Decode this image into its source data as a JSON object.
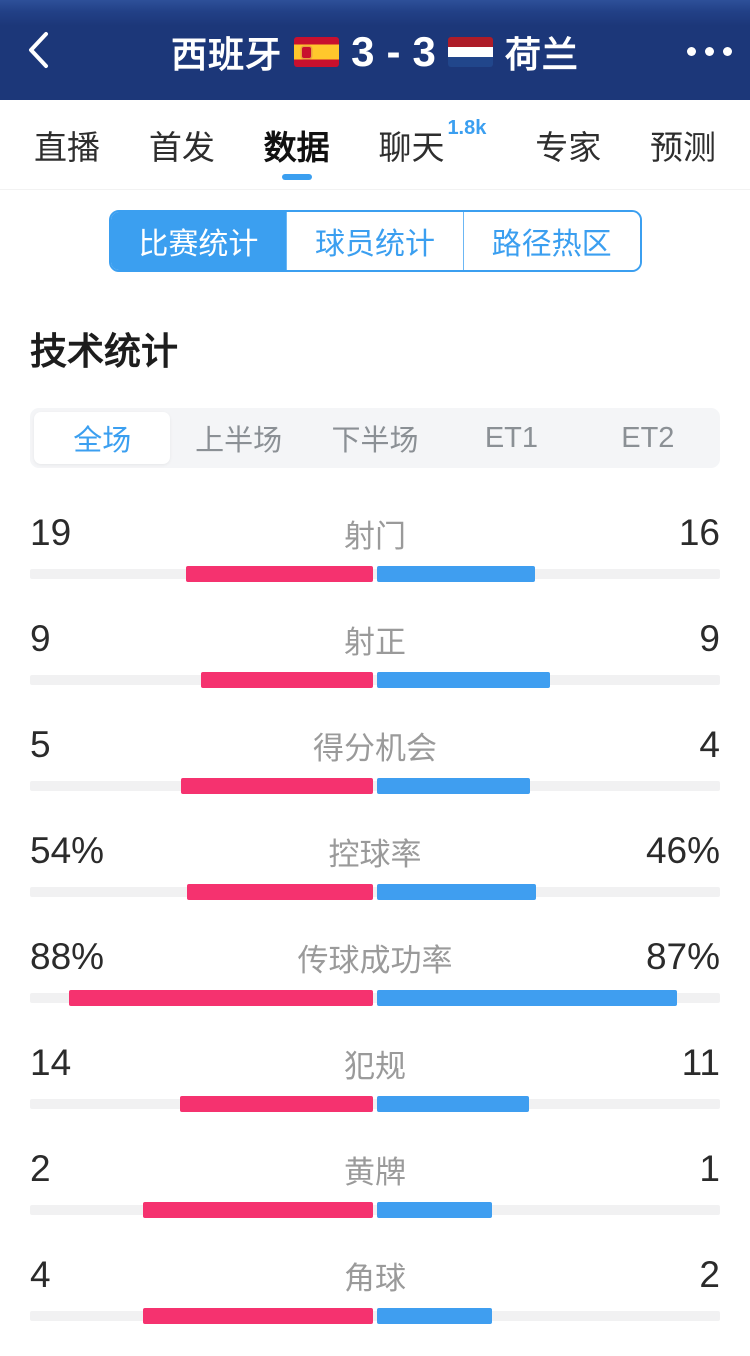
{
  "header": {
    "home_team": "西班牙",
    "away_team": "荷兰",
    "home_score": "3",
    "score_separator": "-",
    "away_score": "3",
    "back_icon": "chevron-left",
    "more_icon": "ellipsis"
  },
  "nav_tabs": {
    "items": [
      {
        "label": "直播",
        "active": false
      },
      {
        "label": "首发",
        "active": false
      },
      {
        "label": "数据",
        "active": true
      },
      {
        "label": "聊天",
        "active": false,
        "badge": "1.8k"
      },
      {
        "label": "专家",
        "active": false
      },
      {
        "label": "预测",
        "active": false
      }
    ]
  },
  "stat_tabs": {
    "items": [
      {
        "label": "比赛统计",
        "active": true
      },
      {
        "label": "球员统计",
        "active": false
      },
      {
        "label": "路径热区",
        "active": false
      }
    ]
  },
  "main": {
    "section_title": "技术统计"
  },
  "period_tabs": {
    "items": [
      {
        "label": "全场",
        "active": true
      },
      {
        "label": "上半场",
        "active": false
      },
      {
        "label": "下半场",
        "active": false
      },
      {
        "label": "ET1",
        "active": false
      },
      {
        "label": "ET2",
        "active": false
      }
    ]
  },
  "colors": {
    "accent_blue": "#3b9ff0",
    "home_pink": "#f5326f",
    "away_blue": "#3f9ef0",
    "header_navy": "#1c3779",
    "track_gray": "#f1f1f2"
  },
  "chart_data": {
    "type": "bar",
    "title": "技术统计 全场",
    "description": "Paired horizontal stat bars from center: home (left, pink) vs away (right, blue); bar length share = value share (counts) or percentage of half-track (percent rows)",
    "home_team": "西班牙",
    "away_team": "荷兰",
    "rows": [
      {
        "label": "射门",
        "home_display": "19",
        "away_display": "16",
        "home_value": 19,
        "away_value": 16,
        "is_percent": false
      },
      {
        "label": "射正",
        "home_display": "9",
        "away_display": "9",
        "home_value": 9,
        "away_value": 9,
        "is_percent": false
      },
      {
        "label": "得分机会",
        "home_display": "5",
        "away_display": "4",
        "home_value": 5,
        "away_value": 4,
        "is_percent": false
      },
      {
        "label": "控球率",
        "home_display": "54%",
        "away_display": "46%",
        "home_value": 54,
        "away_value": 46,
        "is_percent": true
      },
      {
        "label": "传球成功率",
        "home_display": "88%",
        "away_display": "87%",
        "home_value": 88,
        "away_value": 87,
        "is_percent": true
      },
      {
        "label": "犯规",
        "home_display": "14",
        "away_display": "11",
        "home_value": 14,
        "away_value": 11,
        "is_percent": false
      },
      {
        "label": "黄牌",
        "home_display": "2",
        "away_display": "1",
        "home_value": 2,
        "away_value": 1,
        "is_percent": false
      },
      {
        "label": "角球",
        "home_display": "4",
        "away_display": "2",
        "home_value": 4,
        "away_value": 2,
        "is_percent": false
      }
    ]
  }
}
